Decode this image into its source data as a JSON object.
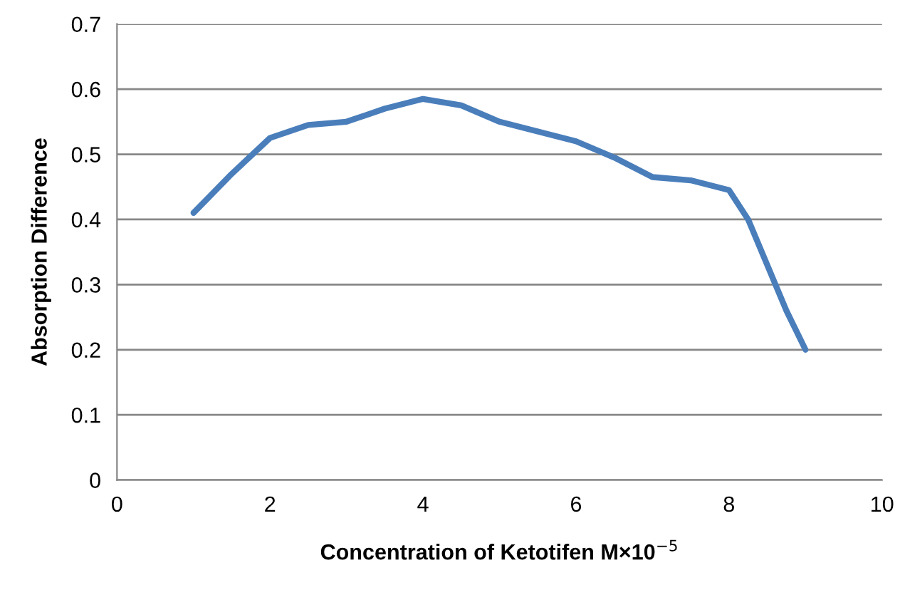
{
  "chart_data": {
    "type": "line",
    "xlabel": "Concentration of Ketotifen M×10$^{−5}$",
    "ylabel": "Absorption Difference",
    "x": [
      1,
      1.5,
      2,
      2.5,
      3,
      3.5,
      4,
      4.5,
      5,
      5.5,
      6,
      6.5,
      7,
      7.5,
      8,
      8.25,
      8.5,
      8.75,
      9
    ],
    "series": [
      {
        "color": "#4a7ebb",
        "values": [
          0.41,
          0.47,
          0.525,
          0.545,
          0.55,
          0.57,
          0.585,
          0.575,
          0.55,
          0.535,
          0.52,
          0.495,
          0.465,
          0.46,
          0.445,
          0.4,
          0.33,
          0.26,
          0.2
        ]
      }
    ],
    "xlim": [
      0,
      10
    ],
    "xticks": [
      0,
      2,
      4,
      6,
      8,
      10
    ],
    "ylim": [
      0,
      0.7
    ],
    "yticks": [
      0,
      0.1,
      0.2,
      0.3,
      0.4,
      0.5,
      0.6,
      0.7
    ],
    "grid": "y",
    "marker": "none",
    "line_style": "solid"
  }
}
